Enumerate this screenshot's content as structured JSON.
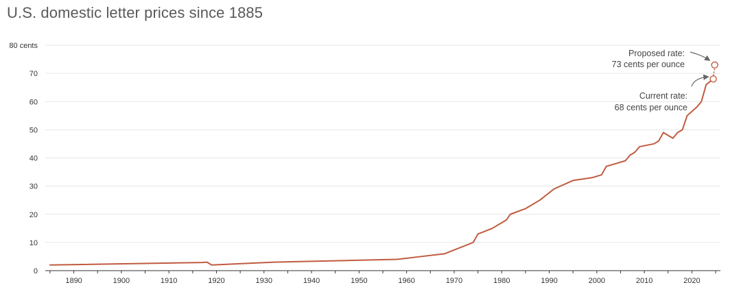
{
  "chart_data": {
    "type": "line",
    "title": "U.S. domestic letter prices since 1885",
    "xlabel": "",
    "ylabel": "",
    "xlim": [
      1884,
      2026
    ],
    "ylim": [
      0,
      80
    ],
    "grid": true,
    "colors": {
      "line": "#c05a3f",
      "grid": "#e6e6e6",
      "axis": "#333333",
      "annotation": "#666666"
    },
    "y_ticks": [
      {
        "value": 0,
        "label": "0"
      },
      {
        "value": 10,
        "label": "10"
      },
      {
        "value": 20,
        "label": "20"
      },
      {
        "value": 30,
        "label": "30"
      },
      {
        "value": 40,
        "label": "40"
      },
      {
        "value": 50,
        "label": "50"
      },
      {
        "value": 60,
        "label": "60"
      },
      {
        "value": 70,
        "label": "70"
      },
      {
        "value": 80,
        "label": "80 cents"
      }
    ],
    "x_ticks": [
      {
        "value": 1890,
        "label": "1890"
      },
      {
        "value": 1900,
        "label": "1900"
      },
      {
        "value": 1910,
        "label": "1910"
      },
      {
        "value": 1920,
        "label": "1920"
      },
      {
        "value": 1930,
        "label": "1930"
      },
      {
        "value": 1940,
        "label": "1940"
      },
      {
        "value": 1950,
        "label": "1950"
      },
      {
        "value": 1960,
        "label": "1960"
      },
      {
        "value": 1970,
        "label": "1970"
      },
      {
        "value": 1980,
        "label": "1980"
      },
      {
        "value": 1990,
        "label": "1990"
      },
      {
        "value": 2000,
        "label": "2000"
      },
      {
        "value": 2010,
        "label": "2010"
      },
      {
        "value": 2020,
        "label": "2020"
      }
    ],
    "series": [
      {
        "x": [
          1885,
          1917,
          1918,
          1919,
          1932,
          1958,
          1963,
          1968,
          1971,
          1974,
          1975,
          1978,
          1981,
          1981.8,
          1985,
          1988,
          1991,
          1995,
          1999,
          2001,
          2002,
          2006,
          2007,
          2008,
          2009,
          2012,
          2013,
          2014,
          2016,
          2017,
          2018,
          2019,
          2021,
          2022,
          2023,
          2024.5
        ],
        "y": [
          2,
          2.9,
          3,
          2,
          3,
          4,
          5,
          6,
          8,
          10,
          13,
          15,
          18,
          20,
          22,
          25,
          29,
          32,
          33,
          34,
          37,
          39,
          41,
          42,
          44,
          45,
          46,
          49,
          47,
          49,
          50,
          55,
          58,
          60,
          66,
          68
        ]
      }
    ],
    "points": [
      {
        "name": "current",
        "x": 2024.5,
        "y": 68
      },
      {
        "name": "proposed",
        "x": 2024.8,
        "y": 73
      }
    ],
    "annotations": {
      "proposed": {
        "line1": "Proposed rate:",
        "line2": "73 cents per ounce"
      },
      "current": {
        "line1": "Current rate:",
        "line2": "68 cents per ounce"
      }
    }
  }
}
